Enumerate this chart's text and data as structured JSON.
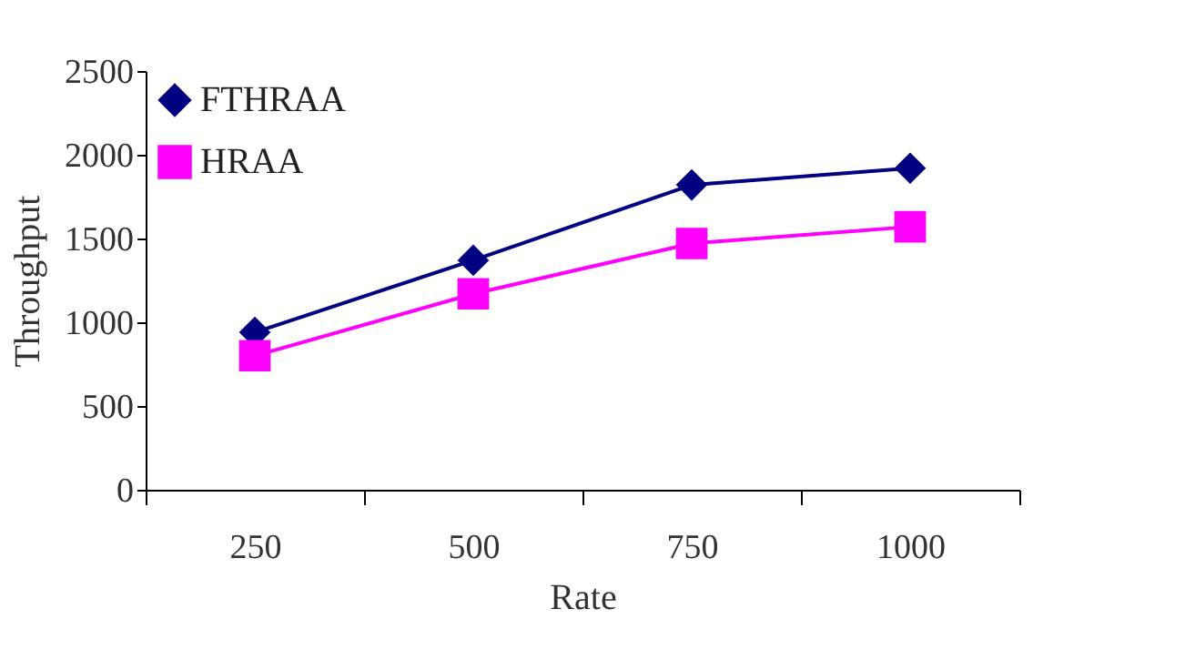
{
  "chart_data": {
    "type": "line",
    "xlabel": "Rate",
    "ylabel": "Throughput",
    "categories": [
      "250",
      "500",
      "750",
      "1000"
    ],
    "series": [
      {
        "name": "FTHRAA",
        "color": "#000080",
        "marker": "diamond",
        "values": [
          940,
          1370,
          1820,
          1920
        ]
      },
      {
        "name": "HRAA",
        "color": "#ff00ff",
        "marker": "square",
        "values": [
          800,
          1170,
          1470,
          1570
        ]
      }
    ],
    "ylim": [
      0,
      2500
    ],
    "yticks": [
      0,
      500,
      1000,
      1500,
      2000,
      2500
    ],
    "grid": false,
    "legend": "top left"
  }
}
